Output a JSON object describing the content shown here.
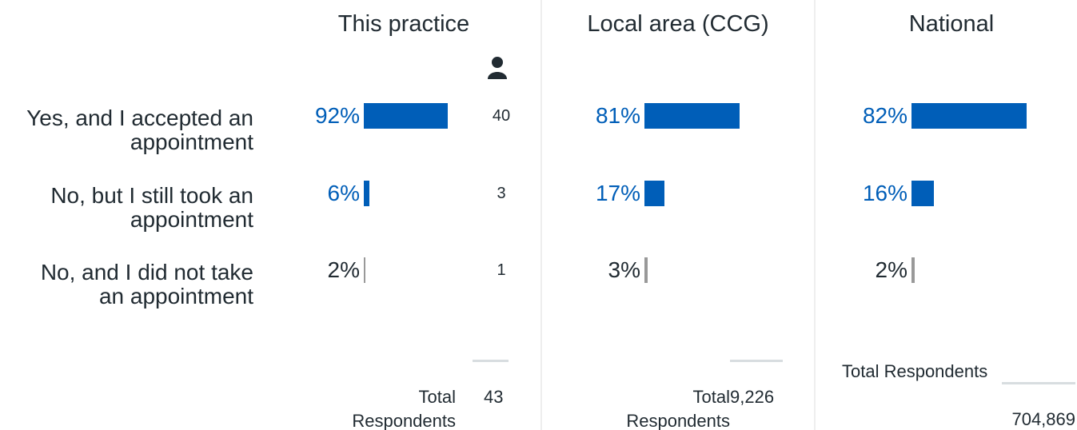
{
  "categories": [
    "Yes, and I accepted an appointment",
    "No, but I still took an appointment",
    "No, and I did not take an appointment"
  ],
  "chart_data": [
    {
      "type": "bar",
      "title": "This practice",
      "values": [
        92,
        6,
        2
      ],
      "value_labels": [
        "92%",
        "6%",
        "2%"
      ],
      "colors": [
        "#005eb8",
        "#005eb8",
        "#999999"
      ],
      "label_colors": [
        "#005eb8",
        "#005eb8",
        "#212b32"
      ],
      "counts": [
        40,
        3,
        1
      ],
      "total_label": "Total Respondents",
      "total": 43
    },
    {
      "type": "bar",
      "title": "Local area (CCG)",
      "values": [
        81,
        17,
        3
      ],
      "value_labels": [
        "81%",
        "17%",
        "3%"
      ],
      "colors": [
        "#005eb8",
        "#005eb8",
        "#999999"
      ],
      "label_colors": [
        "#005eb8",
        "#005eb8",
        "#212b32"
      ],
      "total_label": "Total Respondents",
      "total": "9,226"
    },
    {
      "type": "bar",
      "title": "National",
      "values": [
        82,
        16,
        2
      ],
      "value_labels": [
        "82%",
        "16%",
        "2%"
      ],
      "colors": [
        "#005eb8",
        "#005eb8",
        "#999999"
      ],
      "label_colors": [
        "#005eb8",
        "#005eb8",
        "#212b32"
      ],
      "total_label": "Total Respondents",
      "total": "704,869"
    }
  ]
}
